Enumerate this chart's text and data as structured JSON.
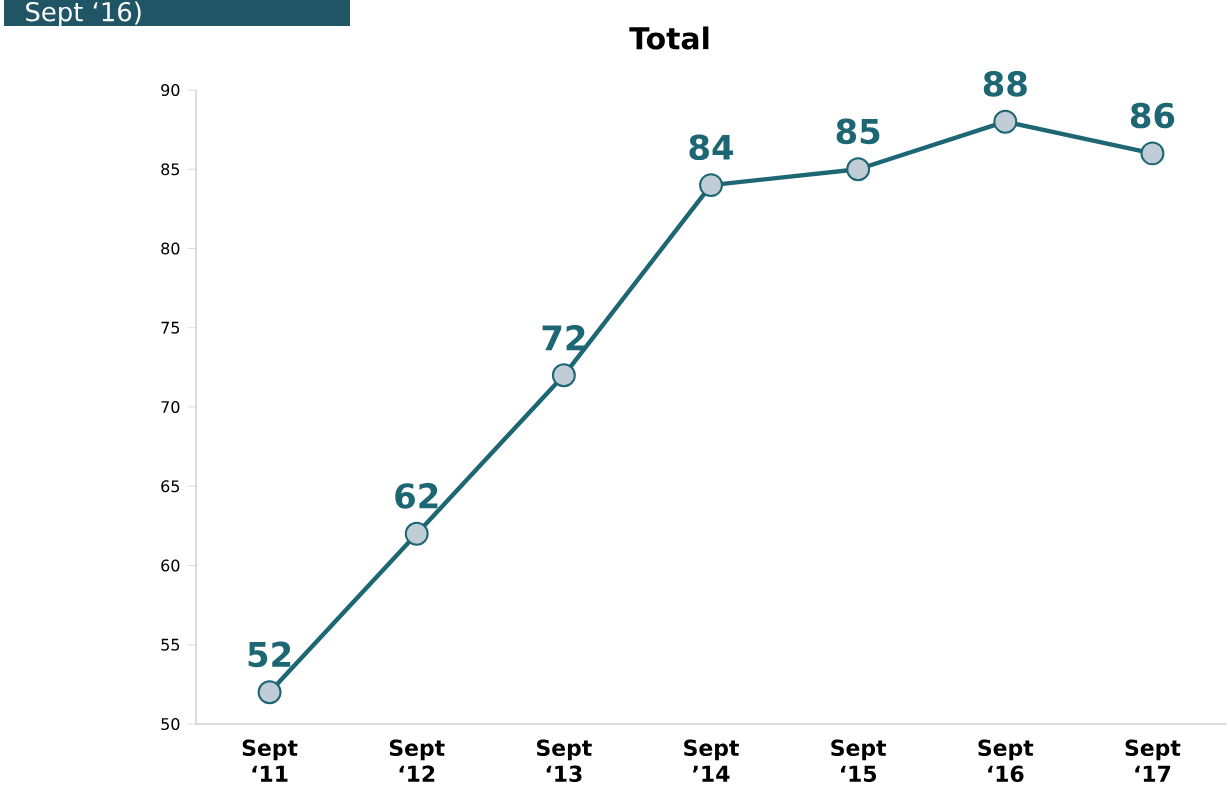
{
  "chart_data": {
    "type": "line",
    "title": "Total",
    "annotations": [
      "Sept ‘16)"
    ],
    "categories": [
      "Sept ‘11",
      "Sept ‘12",
      "Sept ‘13",
      "Sept ’14",
      "Sept ‘15",
      "Sept ‘16",
      "Sept ‘17"
    ],
    "series": [
      {
        "color": "#1d6673",
        "values": [
          52,
          62,
          72,
          84,
          85,
          88,
          86
        ]
      }
    ],
    "ylim": [
      50,
      90
    ],
    "yticks": [
      50,
      55,
      60,
      65,
      70,
      75,
      80,
      85,
      90
    ],
    "data_labels": true,
    "marker": "circle",
    "grid": false
  }
}
